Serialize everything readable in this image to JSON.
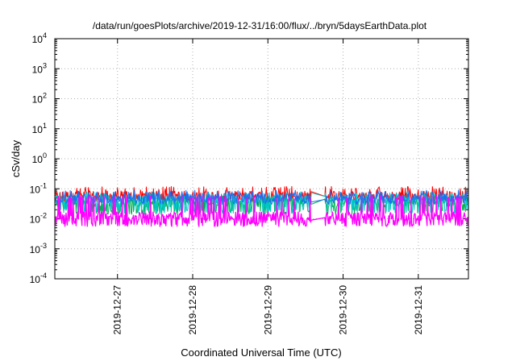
{
  "chart_data": {
    "type": "line",
    "title": "/data/run/goesPlots/archive/2019-12-31/16:00/flux/../bryn/5daysEarthData.plot",
    "xlabel": "Coordinated Universal Time (UTC)",
    "ylabel": "cSv/day",
    "yscale": "log",
    "ylim": [
      0.0001,
      10000
    ],
    "xlim": [
      "2019-12-26T04:00",
      "2019-12-31T16:00"
    ],
    "grid": true,
    "legend": "none",
    "y_ticks": [
      {
        "base": "10",
        "exp": "-4",
        "value": 0.0001
      },
      {
        "base": "10",
        "exp": "-3",
        "value": 0.001
      },
      {
        "base": "10",
        "exp": "-2",
        "value": 0.01
      },
      {
        "base": "10",
        "exp": "-1",
        "value": 0.1
      },
      {
        "base": "10",
        "exp": "0",
        "value": 1
      },
      {
        "base": "10",
        "exp": "1",
        "value": 10
      },
      {
        "base": "10",
        "exp": "2",
        "value": 100
      },
      {
        "base": "10",
        "exp": "3",
        "value": 1000
      },
      {
        "base": "10",
        "exp": "4",
        "value": 10000
      }
    ],
    "x_ticks": [
      {
        "label": "2019-12-27",
        "t": "2019-12-27T00:00"
      },
      {
        "label": "2019-12-28",
        "t": "2019-12-28T00:00"
      },
      {
        "label": "2019-12-29",
        "t": "2019-12-29T00:00"
      },
      {
        "label": "2019-12-30",
        "t": "2019-12-30T00:00"
      },
      {
        "label": "2019-12-31",
        "t": "2019-12-31T00:00"
      }
    ],
    "data_gap": [
      "2019-12-29T14:00",
      "2019-12-29T18:00"
    ],
    "series": [
      {
        "color": "#ff0000",
        "typical": 0.06,
        "low": 0.035,
        "high": 0.12
      },
      {
        "color": "#00b050",
        "typical": 0.035,
        "low": 0.014,
        "high": 0.06
      },
      {
        "color": "#00c8c8",
        "typical": 0.045,
        "low": 0.015,
        "high": 0.08
      },
      {
        "color": "#1e6ef0",
        "typical": 0.05,
        "low": 0.03,
        "high": 0.09
      },
      {
        "color": "#ff00ff",
        "typical": 0.012,
        "low": 0.0055,
        "high": 0.06
      }
    ]
  }
}
